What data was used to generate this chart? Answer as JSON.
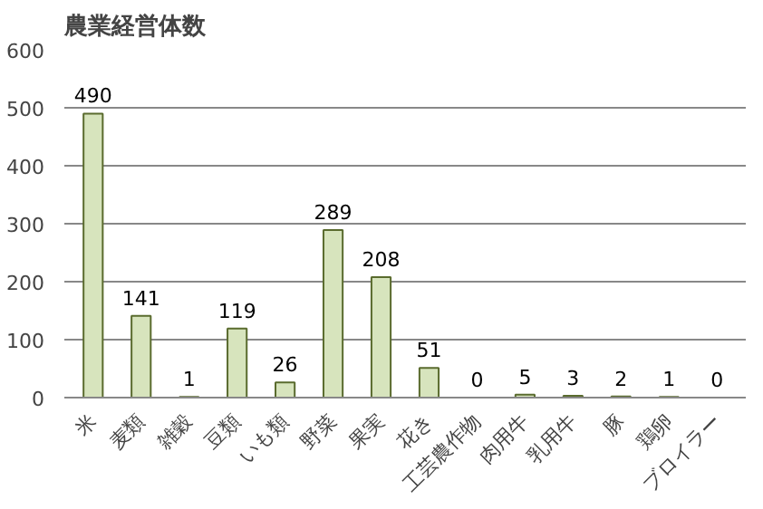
{
  "chart_data": {
    "type": "bar",
    "title": "農業経営体数",
    "categories": [
      "米",
      "麦類",
      "雑穀",
      "豆類",
      "いも類",
      "野菜",
      "果実",
      "花き",
      "工芸農作物",
      "肉用牛",
      "乳用牛",
      "豚",
      "鶏卵",
      "ブロイラー"
    ],
    "values": [
      490,
      141,
      1,
      119,
      26,
      289,
      208,
      51,
      0,
      5,
      3,
      2,
      1,
      0
    ],
    "color": "#d7e4bd",
    "ylim": [
      0,
      600
    ],
    "yticks": [
      0,
      100,
      200,
      300,
      400,
      500,
      600
    ],
    "grid": "y",
    "data_labels": true
  }
}
